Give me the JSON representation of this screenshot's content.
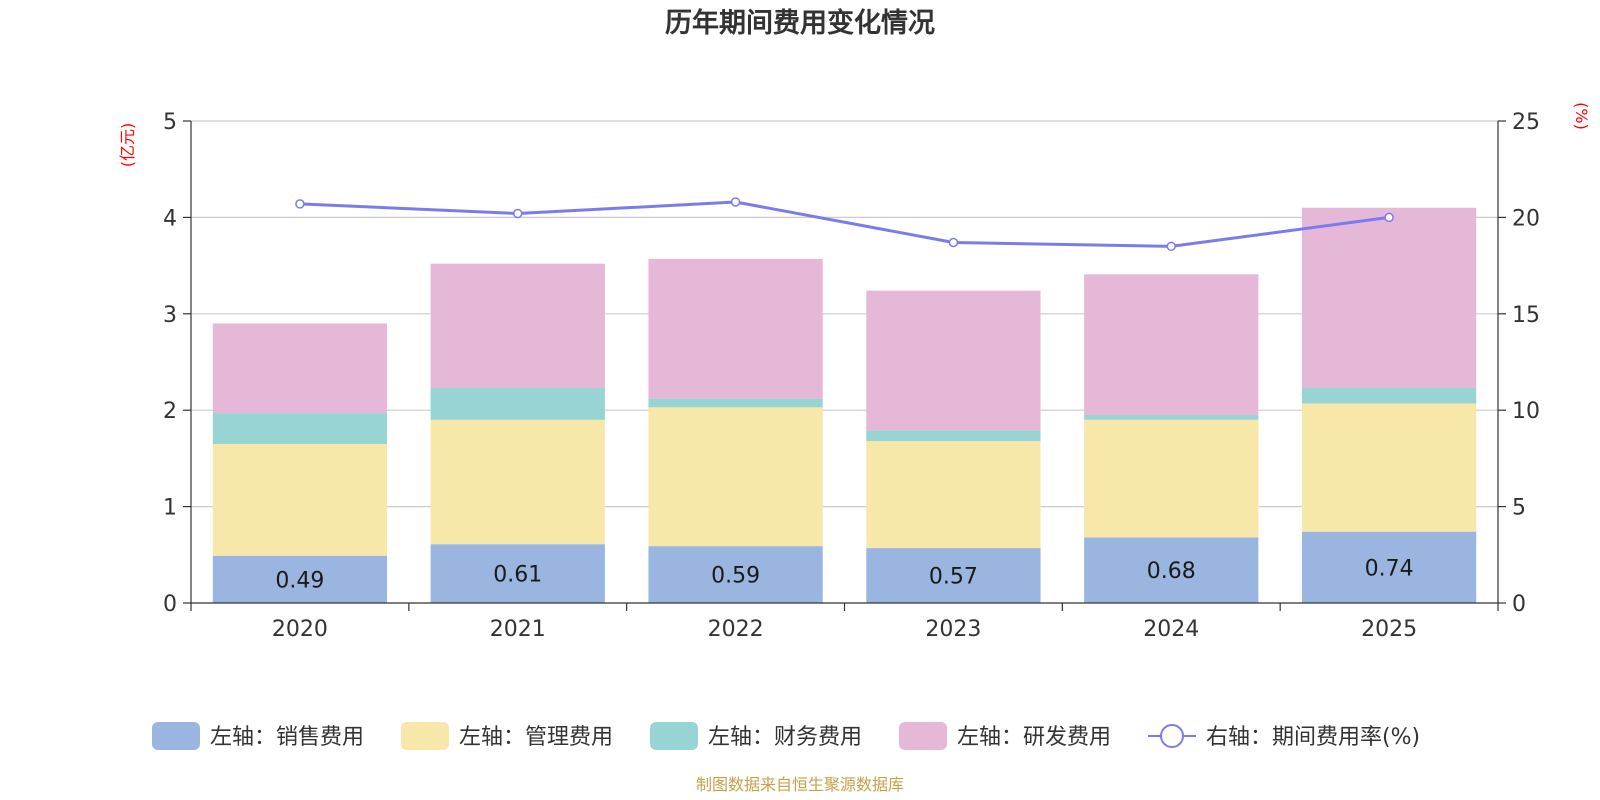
{
  "chart_data": {
    "type": "bar",
    "stacked": true,
    "title": "历年期间费用变化情况",
    "left_axis_unit": "(亿元)",
    "right_axis_unit": "(%)",
    "categories": [
      "2020",
      "2021",
      "2022",
      "2023",
      "2024",
      "2025"
    ],
    "ylim_left": [
      0,
      5
    ],
    "yticks_left": [
      "0",
      "1",
      "2",
      "3",
      "4",
      "5"
    ],
    "ylim_right": [
      0,
      25
    ],
    "yticks_right": [
      "0",
      "5",
      "10",
      "15",
      "20",
      "25"
    ],
    "series": [
      {
        "name": "左轴：销售费用",
        "axis": "left",
        "kind": "bar",
        "color": "#9ab6e0",
        "values": [
          0.49,
          0.61,
          0.59,
          0.57,
          0.68,
          0.74
        ],
        "labels": [
          "0.49",
          "0.61",
          "0.59",
          "0.57",
          "0.68",
          "0.74"
        ]
      },
      {
        "name": "左轴：管理费用",
        "axis": "left",
        "kind": "bar",
        "color": "#f7e7a8",
        "values": [
          1.16,
          1.29,
          1.44,
          1.11,
          1.22,
          1.33
        ]
      },
      {
        "name": "左轴：财务费用",
        "axis": "left",
        "kind": "bar",
        "color": "#98d4d4",
        "values": [
          0.32,
          0.33,
          0.09,
          0.11,
          0.05,
          0.16
        ]
      },
      {
        "name": "左轴：研发费用",
        "axis": "left",
        "kind": "bar",
        "color": "#e6b8d8",
        "values": [
          0.93,
          1.29,
          1.45,
          1.45,
          1.46,
          1.87
        ]
      },
      {
        "name": "右轴：期间费用率(%)",
        "axis": "right",
        "kind": "line",
        "color": "#7b7cec",
        "values": [
          20.7,
          20.2,
          20.8,
          18.7,
          18.5,
          20.0
        ]
      }
    ],
    "grid": true,
    "legend_position": "bottom"
  },
  "source_note": "制图数据来自恒生聚源数据库"
}
